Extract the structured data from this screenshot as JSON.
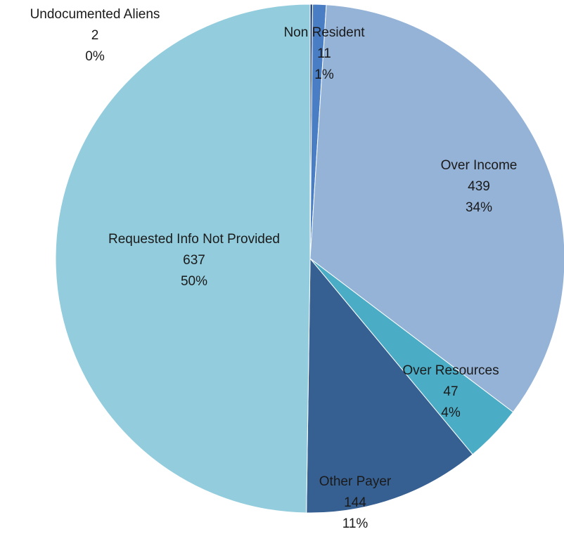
{
  "chart_data": {
    "type": "pie",
    "title": "",
    "start": "12 o'clock, clockwise",
    "slices": [
      {
        "label": "Undocumented Aliens",
        "value": 2,
        "percent": "0%",
        "color": "#2e4a78"
      },
      {
        "label": "Non Resident",
        "value": 11,
        "percent": "1%",
        "color": "#4a7ec4"
      },
      {
        "label": "Over Income",
        "value": 439,
        "percent": "34%",
        "color": "#95b3d7"
      },
      {
        "label": "Over Resources",
        "value": 47,
        "percent": "4%",
        "color": "#4bacc6"
      },
      {
        "label": "Other Payer",
        "value": 144,
        "percent": "11%",
        "color": "#376092"
      },
      {
        "label": "Requested Info Not Provided",
        "value": 637,
        "percent": "50%",
        "color": "#93cddd"
      }
    ]
  }
}
